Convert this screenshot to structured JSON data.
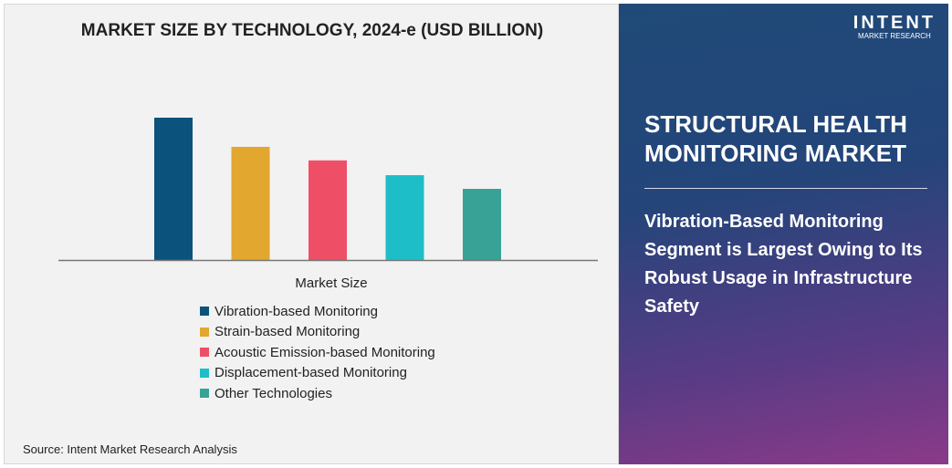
{
  "chart_data": {
    "type": "bar",
    "title": "MARKET SIZE BY TECHNOLOGY, 2024-e (USD BILLION)",
    "xlabel": "Market Size",
    "ylabel": "",
    "categories": [
      "Vibration-based Monitoring",
      "Strain-based Monitoring",
      "Acoustic Emission-based Monitoring",
      "Displacement-based Monitoring",
      "Other Technologies"
    ],
    "values": [
      100,
      79.5,
      70,
      59.6,
      50
    ],
    "colors": [
      "#0b527d",
      "#e2a72f",
      "#ef4e67",
      "#1dbec8",
      "#37a295"
    ],
    "grid": false,
    "legend": "bottom"
  },
  "source": "Source: Intent Market Research Analysis",
  "panel": {
    "logo_main": "INTENT",
    "logo_sub": "MARKET RESEARCH",
    "title": "STRUCTURAL HEALTH MONITORING MARKET",
    "text": "Vibration-Based Monitoring Segment is Largest Owing to Its Robust Usage in Infrastructure Safety"
  }
}
